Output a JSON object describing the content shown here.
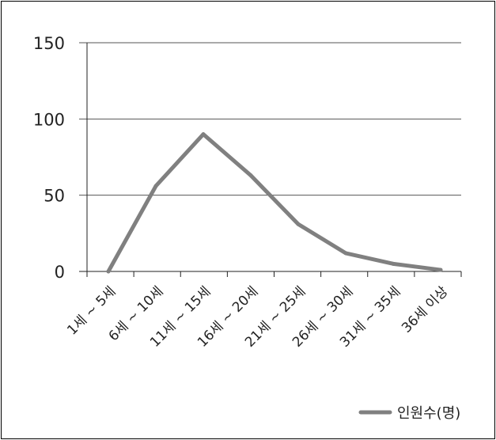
{
  "chart_data": {
    "type": "line",
    "categories": [
      "1세 ~ 5세",
      "6세 ~ 10세",
      "11세 ~ 15세",
      "16세 ~ 20세",
      "21세 ~ 25세",
      "26세 ~ 30세",
      "31세 ~ 35세",
      "36세 이상"
    ],
    "series": [
      {
        "name": "인원수(명)",
        "values": [
          0,
          56,
          90,
          63,
          31,
          12,
          5,
          1
        ]
      }
    ],
    "ylim": [
      0,
      150
    ],
    "yticks": [
      "0",
      "50",
      "100",
      "150"
    ],
    "grid": true,
    "legend_position": "bottom-right",
    "colors": {
      "line": "#808080",
      "grid": "#555555",
      "axis": "#222222"
    }
  }
}
